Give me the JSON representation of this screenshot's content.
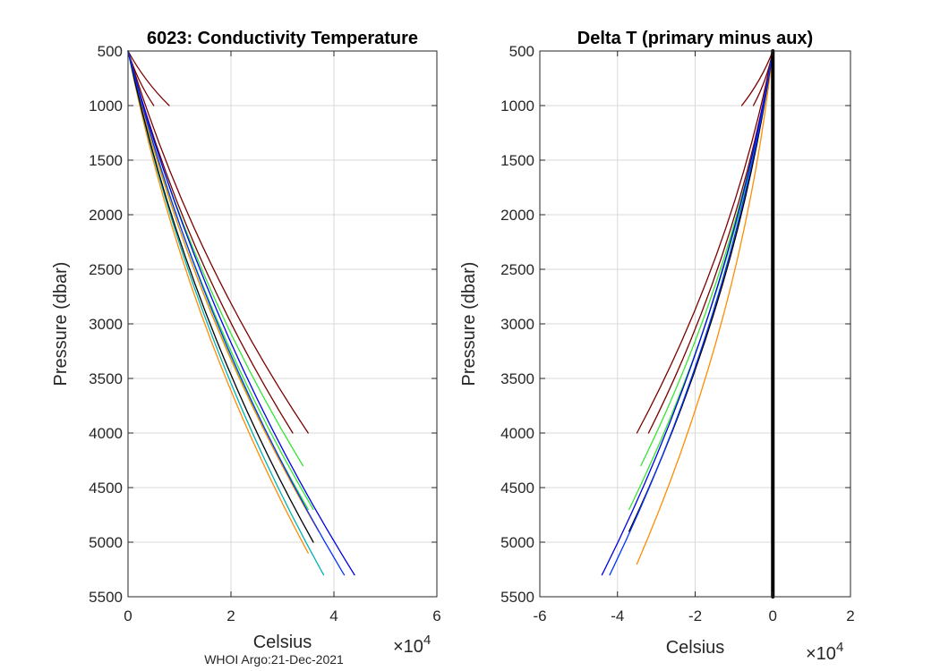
{
  "footer_text": "WHOI Argo:21-Dec-2021",
  "colors": {
    "grid": "#d9d9d9",
    "axis": "#262626",
    "background": "#ffffff"
  },
  "chart_data": [
    {
      "type": "line",
      "title": "6023: Conductivity Temperature",
      "xlabel": "Celsius",
      "ylabel": "Pressure (dbar)",
      "x_exponent_label": "×10",
      "x_exponent_power": "4",
      "xlim": [
        0,
        60000
      ],
      "ylim": [
        500,
        5500
      ],
      "y_reversed": true,
      "grid": true,
      "x_tick_values": [
        0,
        20000,
        40000,
        60000
      ],
      "x_tick_labels": [
        "0",
        "2",
        "4",
        "6"
      ],
      "y_tick_values": [
        500,
        1000,
        1500,
        2000,
        2500,
        3000,
        3500,
        4000,
        4500,
        5000,
        5500
      ],
      "y_tick_labels": [
        "500",
        "1000",
        "1500",
        "2000",
        "2500",
        "3000",
        "3500",
        "4000",
        "4500",
        "5000",
        "5500"
      ],
      "series": [
        {
          "name": "profile-dark-red-1",
          "color": "#7a0000",
          "x": [
            0,
            8000
          ],
          "y": [
            500,
            1000
          ]
        },
        {
          "name": "profile-dark-red-2",
          "color": "#7a0000",
          "x": [
            0,
            5000
          ],
          "y": [
            500,
            1000
          ]
        },
        {
          "name": "profile-dark-red-3",
          "color": "#7a0000",
          "x": [
            0,
            35000
          ],
          "y": [
            500,
            4000
          ]
        },
        {
          "name": "profile-dark-red-4",
          "color": "#7a0000",
          "x": [
            0,
            32000
          ],
          "y": [
            500,
            4000
          ]
        },
        {
          "name": "profile-green-1",
          "color": "#33e633",
          "x": [
            0,
            34000
          ],
          "y": [
            500,
            4300
          ]
        },
        {
          "name": "profile-green-2",
          "color": "#33e633",
          "x": [
            0,
            36000
          ],
          "y": [
            500,
            4700
          ]
        },
        {
          "name": "profile-green-3",
          "color": "#33e633",
          "x": [
            0,
            35000
          ],
          "y": [
            500,
            4700
          ]
        },
        {
          "name": "profile-orange-1",
          "color": "#ff8c00",
          "x": [
            0,
            37000
          ],
          "y": [
            500,
            4900
          ]
        },
        {
          "name": "profile-orange-2",
          "color": "#ff8c00",
          "x": [
            0,
            35000
          ],
          "y": [
            500,
            5100
          ]
        },
        {
          "name": "profile-teal-1",
          "color": "#00b3b3",
          "x": [
            0,
            38000
          ],
          "y": [
            500,
            5300
          ]
        },
        {
          "name": "profile-black-1",
          "color": "#000000",
          "x": [
            0,
            36000
          ],
          "y": [
            500,
            5000
          ]
        },
        {
          "name": "profile-blue-1",
          "color": "#0000e6",
          "x": [
            0,
            44000
          ],
          "y": [
            500,
            5300
          ]
        },
        {
          "name": "profile-blue-2",
          "color": "#0033ff",
          "x": [
            0,
            42000
          ],
          "y": [
            500,
            5300
          ]
        }
      ]
    },
    {
      "type": "line",
      "title": "Delta T (primary minus aux)",
      "xlabel": "Celsius",
      "ylabel": "Pressure (dbar)",
      "x_exponent_label": "×10",
      "x_exponent_power": "4",
      "xlim": [
        -60000,
        20000
      ],
      "ylim": [
        500,
        5500
      ],
      "y_reversed": true,
      "grid": true,
      "x_tick_values": [
        -60000,
        -40000,
        -20000,
        0,
        20000
      ],
      "x_tick_labels": [
        "-6",
        "-4",
        "-2",
        "0",
        "2"
      ],
      "y_tick_values": [
        500,
        1000,
        1500,
        2000,
        2500,
        3000,
        3500,
        4000,
        4500,
        5000,
        5500
      ],
      "y_tick_labels": [
        "500",
        "1000",
        "1500",
        "2000",
        "2500",
        "3000",
        "3500",
        "4000",
        "4500",
        "5000",
        "5500"
      ],
      "series": [
        {
          "name": "delta-dark-red-1",
          "color": "#7a0000",
          "x": [
            0,
            -8000
          ],
          "y": [
            500,
            1000
          ]
        },
        {
          "name": "delta-dark-red-2",
          "color": "#7a0000",
          "x": [
            0,
            -5000
          ],
          "y": [
            500,
            1000
          ]
        },
        {
          "name": "delta-dark-red-3",
          "color": "#7a0000",
          "x": [
            0,
            -35000
          ],
          "y": [
            500,
            4000
          ]
        },
        {
          "name": "delta-dark-red-4",
          "color": "#7a0000",
          "x": [
            0,
            -32000
          ],
          "y": [
            500,
            4000
          ]
        },
        {
          "name": "delta-green-1",
          "color": "#33e633",
          "x": [
            0,
            -34000
          ],
          "y": [
            500,
            4300
          ]
        },
        {
          "name": "delta-green-2",
          "color": "#33e633",
          "x": [
            0,
            -37000
          ],
          "y": [
            500,
            4700
          ]
        },
        {
          "name": "delta-orange-1",
          "color": "#ff8c00",
          "x": [
            0,
            -37000
          ],
          "y": [
            500,
            4900
          ]
        },
        {
          "name": "delta-orange-2",
          "color": "#ff8c00",
          "x": [
            0,
            -35000
          ],
          "y": [
            500,
            5200
          ]
        },
        {
          "name": "delta-black-1",
          "color": "#000000",
          "x": [
            0,
            -37000
          ],
          "y": [
            500,
            4900
          ]
        },
        {
          "name": "delta-blue-1",
          "color": "#0000e6",
          "x": [
            0,
            -44000
          ],
          "y": [
            500,
            5300
          ]
        },
        {
          "name": "delta-blue-2",
          "color": "#0033ff",
          "x": [
            0,
            -42000
          ],
          "y": [
            500,
            5300
          ]
        },
        {
          "name": "zero-line",
          "color": "#000000",
          "width": 4,
          "straight": true,
          "x": [
            0,
            0
          ],
          "y": [
            500,
            5500
          ]
        }
      ]
    }
  ]
}
